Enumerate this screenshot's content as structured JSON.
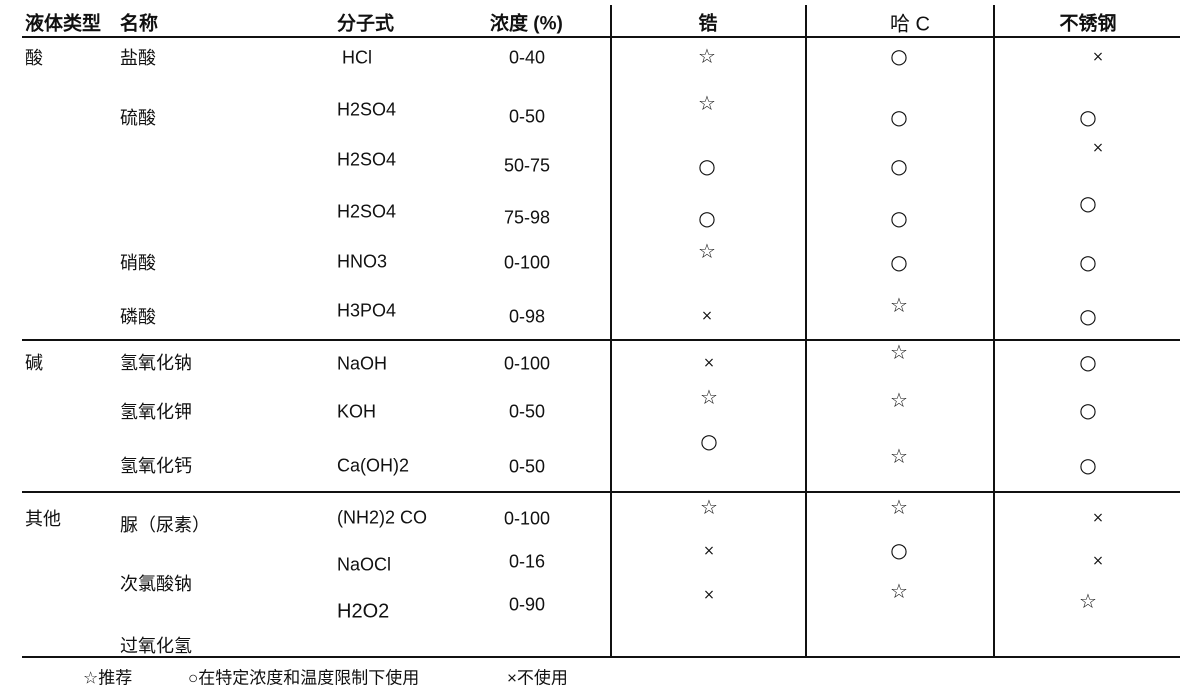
{
  "header": {
    "liquid_type": "液体类型",
    "name": "名称",
    "formula": "分子式",
    "concentration": "浓度 (%)",
    "zirconium": "锆",
    "hastelloy_c": "哈 C",
    "stainless_steel": "不锈钢"
  },
  "groups": [
    "酸",
    "碱",
    "其他"
  ],
  "rows": [
    {
      "name": "盐酸",
      "formula": "HCl",
      "conc": "0-40",
      "zr": "☆",
      "hc": "○",
      "ss": "×"
    },
    {
      "name": "硫酸",
      "formula": "H2SO4",
      "conc": "0-50",
      "zr": "☆",
      "hc": "○",
      "ss": "○"
    },
    {
      "name": "",
      "formula": "H2SO4",
      "conc": "50-75",
      "zr": "○",
      "hc": "○",
      "ss": "×"
    },
    {
      "name": "",
      "formula": "H2SO4",
      "conc": "75-98",
      "zr": "○",
      "hc": "○",
      "ss": "○"
    },
    {
      "name": "硝酸",
      "formula": "HNO3",
      "conc": "0-100",
      "zr": "☆",
      "hc": "○",
      "ss": "○"
    },
    {
      "name": "磷酸",
      "formula": "H3PO4",
      "conc": "0-98",
      "zr": "×",
      "hc": "☆",
      "ss": "○"
    },
    {
      "name": "氢氧化钠",
      "formula": "NaOH",
      "conc": "0-100",
      "zr": "×",
      "hc": "☆",
      "ss": "○"
    },
    {
      "name": "氢氧化钾",
      "formula": "KOH",
      "conc": "0-50",
      "zr": "☆",
      "hc": "☆",
      "ss": "○"
    },
    {
      "name": "氢氧化钙",
      "formula": "Ca(OH)2",
      "conc": "0-50",
      "zr": "○",
      "hc": "☆",
      "ss": "○"
    },
    {
      "name": "脲（尿素）",
      "formula": "(NH2)2 CO",
      "conc": "0-100",
      "zr": "☆",
      "hc": "☆",
      "ss": "×"
    },
    {
      "name": "次氯酸钠",
      "formula": "NaOCl",
      "conc": "0-16",
      "zr": "×",
      "hc": "○",
      "ss": "×"
    },
    {
      "name": "过氧化氢",
      "formula": "H2O2",
      "conc": "0-90",
      "zr": "×",
      "hc": "☆",
      "ss": "☆"
    }
  ],
  "legend": {
    "recommended": "☆推荐",
    "limited": "○在特定浓度和温度限制下使用",
    "not_used": "×不使用"
  }
}
